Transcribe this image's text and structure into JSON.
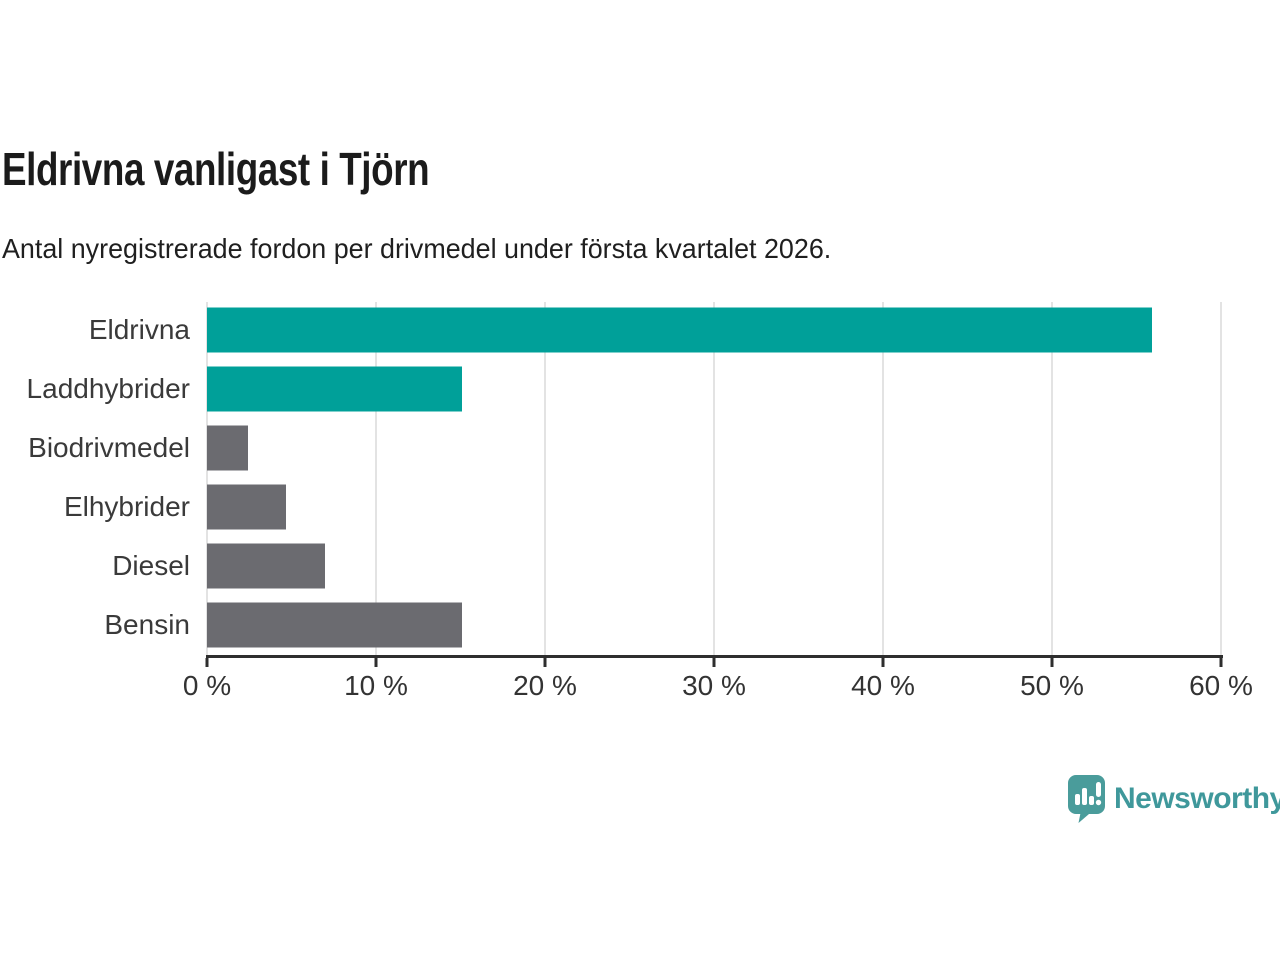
{
  "header": {
    "title": "Eldrivna vanligast i Tjörn",
    "subtitle": "Antal nyregistrerade fordon per drivmedel under första kvartalet 2026."
  },
  "chart_data": {
    "type": "bar",
    "orientation": "horizontal",
    "title": "Eldrivna vanligast i Tjörn",
    "subtitle": "Antal nyregistrerade fordon per drivmedel under första kvartalet 2026.",
    "categories": [
      "Eldrivna",
      "Laddhybrider",
      "Biodrivmedel",
      "Elhybrider",
      "Diesel",
      "Bensin"
    ],
    "values": [
      55.9,
      15.1,
      2.4,
      4.7,
      7.0,
      15.1
    ],
    "unit": "%",
    "bar_colors": [
      "#00a099",
      "#00a099",
      "#6b6b70",
      "#6b6b70",
      "#6b6b70",
      "#6b6b70"
    ],
    "highlight_color": "#00a099",
    "default_color": "#6b6b70",
    "xlabel": "",
    "ylabel": "",
    "xlim": [
      0,
      60
    ],
    "x_ticks": [
      "0 %",
      "10 %",
      "20 %",
      "30 %",
      "40 %",
      "50 %",
      "60 %"
    ],
    "grid": true,
    "gridline_color": "#e3e3e3",
    "axis_color": "#2e2e2e",
    "legend_position": "none"
  },
  "branding": {
    "logo_text": "Newsworthy",
    "logo_color": "#3f989b",
    "logo_icon": "newsworthy-speech-bubble-chart-icon"
  }
}
